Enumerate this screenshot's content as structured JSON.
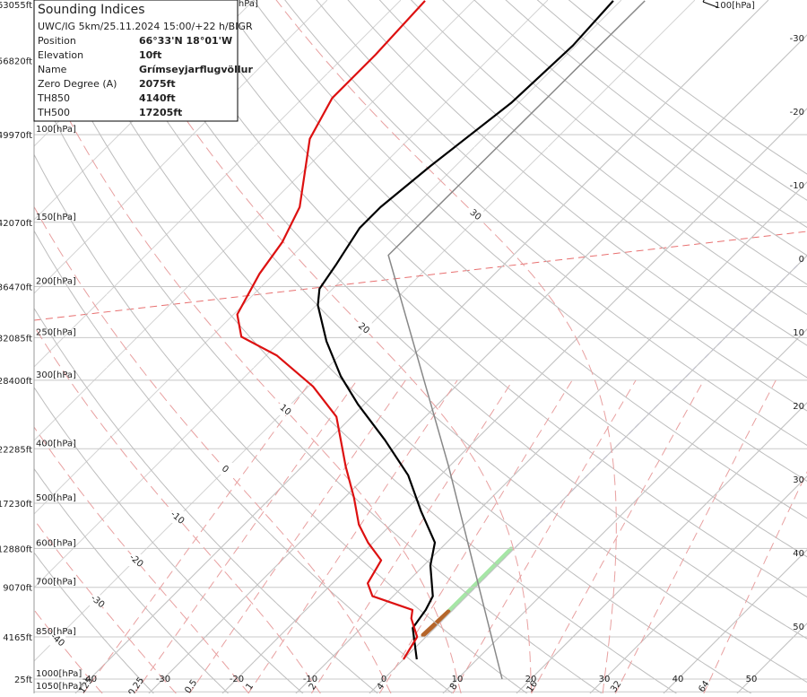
{
  "info_box": {
    "title": "Sounding Indices",
    "subtitle": "UWC/IG 5km/25.11.2024 15:00/+22 h/BIGR",
    "rows": [
      [
        "Position",
        "66°33'N 18°01'W"
      ],
      [
        "Elevation",
        "10ft"
      ],
      [
        "Name",
        "Grímseyjarflugvöllur"
      ],
      [
        "Zero Degree (A)",
        "2075ft"
      ],
      [
        "TH850",
        "4140ft"
      ],
      [
        "TH500",
        "17205ft"
      ]
    ]
  },
  "chart_data": {
    "type": "skewt",
    "xticks": [
      -40,
      -30,
      -20,
      -10,
      0,
      10,
      20,
      30,
      40,
      50
    ],
    "yticks": [
      {
        "value": 100,
        "label": "100[hPa]"
      },
      {
        "value": 150,
        "label": "150[hPa]"
      },
      {
        "value": 200,
        "label": "200[hPa]"
      },
      {
        "value": 250,
        "label": "250[hPa]"
      },
      {
        "value": 300,
        "label": "300[hPa]"
      },
      {
        "value": 400,
        "label": "400[hPa]"
      },
      {
        "value": 500,
        "label": "500[hPa]"
      },
      {
        "value": 600,
        "label": "600[hPa]"
      },
      {
        "value": 700,
        "label": "700[hPa]"
      },
      {
        "value": 850,
        "label": "850[hPa]"
      },
      {
        "value": 1000,
        "label": "1000[hPa]"
      },
      {
        "value": 1050,
        "label": "1050[hPa]"
      }
    ],
    "altitude_ticks": [
      {
        "value": 50,
        "label": "63055ft"
      },
      {
        "value": 70,
        "label": "56820ft"
      },
      {
        "value": 100,
        "label": "49970ft"
      },
      {
        "value": 150,
        "label": "42070ft"
      },
      {
        "value": 200,
        "label": "36470ft"
      },
      {
        "value": 250,
        "label": "32085ft"
      },
      {
        "value": 300,
        "label": "28400ft"
      },
      {
        "value": 400,
        "label": "22285ft"
      },
      {
        "value": 500,
        "label": "17230ft"
      },
      {
        "value": 600,
        "label": "12880ft"
      },
      {
        "value": 700,
        "label": "9070ft"
      },
      {
        "value": 850,
        "label": "4165ft"
      },
      {
        "value": 1000,
        "label": "25ft"
      }
    ],
    "mixing_ratio_ticks": [
      {
        "value": 0.125,
        "label": ".125"
      },
      0.25,
      0.5,
      1,
      2,
      4,
      8,
      16,
      32,
      64
    ],
    "moist_adiabat_ticks": [
      -40,
      -30,
      -20,
      -10,
      0,
      10,
      20,
      30
    ],
    "top_left_label": "[hPa]",
    "wind_top_label": "100[hPa]",
    "series": [
      {
        "color": "#000000",
        "pressure": [
          927,
          821,
          765,
          725,
          642,
          586,
          517,
          446,
          386,
          332,
          295,
          254,
          217,
          202,
          182,
          154,
          140,
          116,
          86,
          65,
          52
        ],
        "values": [
          1.8,
          -3.0,
          -3.7,
          -4.6,
          -9.1,
          -11.6,
          -17.7,
          -24.4,
          -32.3,
          -40.9,
          -47.0,
          -53.7,
          -59.8,
          -61.8,
          -62.8,
          -64.6,
          -64.6,
          -63.4,
          -61.0,
          -60.4,
          -61.0
        ]
      },
      {
        "color": "#dd1111",
        "pressure": [
          927,
          850,
          791,
          765,
          725,
          689,
          629,
          586,
          545,
          489,
          430,
          350,
          308,
          270,
          249,
          226,
          189,
          164,
          140,
          102,
          84,
          68,
          52
        ],
        "values": [
          0,
          -1.2,
          -4.5,
          -5.5,
          -12.8,
          -15.2,
          -16.5,
          -20.7,
          -24.4,
          -28.7,
          -34.1,
          -42.1,
          -49.4,
          -58.5,
          -65.9,
          -69.5,
          -72.0,
          -73.2,
          -75.6,
          -83.5,
          -86.0,
          -86.0,
          -86.6
        ]
      },
      {
        "color": "#888888",
        "pressure": [
          1000,
          430,
          174,
          52
        ],
        "values": [
          16.1,
          -20.1,
          -57,
          -56.7
        ]
      }
    ]
  }
}
